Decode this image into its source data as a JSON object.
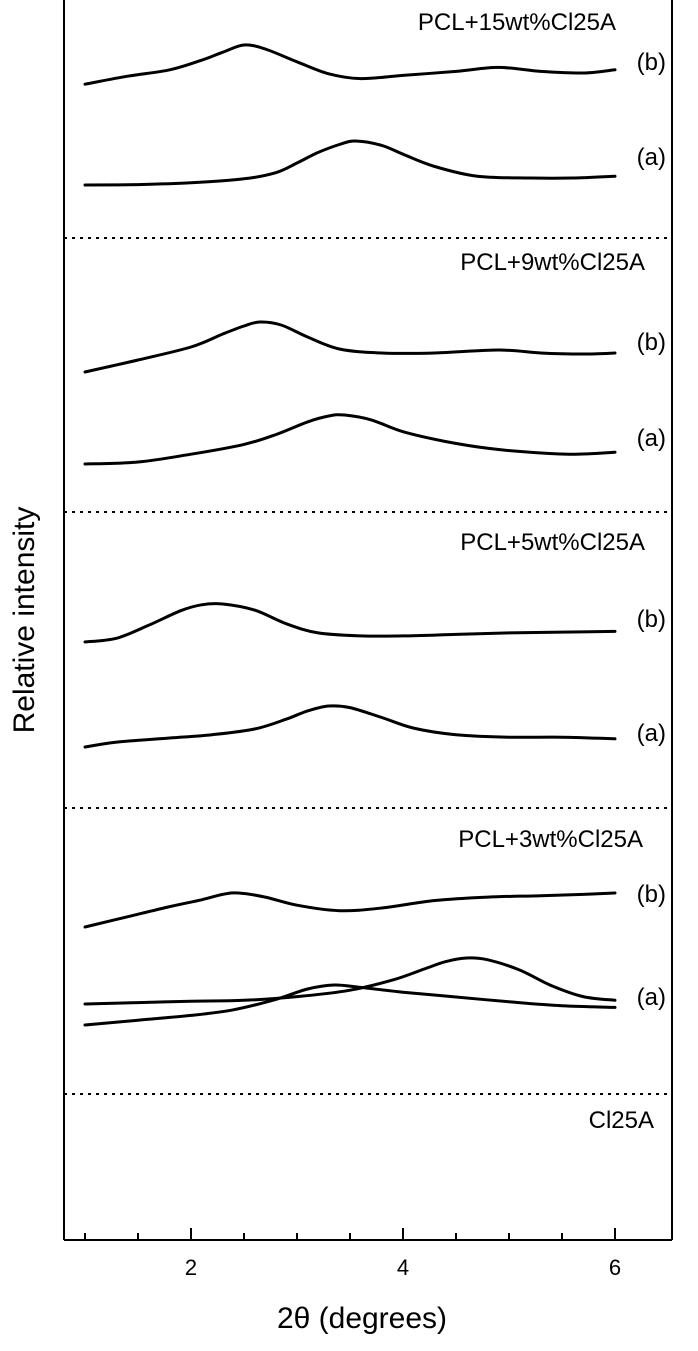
{
  "chart_data": {
    "type": "line",
    "xlabel": "2θ (degrees)",
    "ylabel": "Relative intensity",
    "xlim": [
      0.8,
      6.5
    ],
    "xticks": [
      2,
      4,
      6
    ],
    "xtick_labels": [
      "2",
      "4",
      "6"
    ],
    "grid": false,
    "legend": "none",
    "colors": {
      "line": "#000000",
      "axis": "#000000",
      "separator": "#000000"
    },
    "panels": [
      {
        "label": "PCL+15wt%Cl25A",
        "series": [
          {
            "name": "(b)",
            "points": [
              [
                1.0,
                0.02
              ],
              [
                1.4,
                0.22
              ],
              [
                1.8,
                0.38
              ],
              [
                2.1,
                0.62
              ],
              [
                2.3,
                0.82
              ],
              [
                2.5,
                1.0
              ],
              [
                2.7,
                0.9
              ],
              [
                3.0,
                0.58
              ],
              [
                3.3,
                0.28
              ],
              [
                3.6,
                0.16
              ],
              [
                4.0,
                0.24
              ],
              [
                4.5,
                0.34
              ],
              [
                4.9,
                0.44
              ],
              [
                5.3,
                0.34
              ],
              [
                5.7,
                0.3
              ],
              [
                6.0,
                0.38
              ]
            ]
          },
          {
            "name": "(a)",
            "points": [
              [
                1.0,
                0.0
              ],
              [
                1.5,
                0.01
              ],
              [
                2.0,
                0.05
              ],
              [
                2.5,
                0.14
              ],
              [
                2.8,
                0.28
              ],
              [
                3.0,
                0.5
              ],
              [
                3.2,
                0.74
              ],
              [
                3.4,
                0.92
              ],
              [
                3.55,
                1.0
              ],
              [
                3.8,
                0.9
              ],
              [
                4.0,
                0.7
              ],
              [
                4.3,
                0.42
              ],
              [
                4.7,
                0.2
              ],
              [
                5.2,
                0.16
              ],
              [
                5.6,
                0.16
              ],
              [
                6.0,
                0.2
              ]
            ]
          }
        ]
      },
      {
        "label": "PCL+9wt%Cl25A",
        "series": [
          {
            "name": "(b)",
            "points": [
              [
                1.0,
                0.0
              ],
              [
                1.5,
                0.24
              ],
              [
                2.0,
                0.5
              ],
              [
                2.3,
                0.76
              ],
              [
                2.5,
                0.92
              ],
              [
                2.65,
                1.0
              ],
              [
                2.85,
                0.94
              ],
              [
                3.1,
                0.7
              ],
              [
                3.4,
                0.46
              ],
              [
                3.8,
                0.38
              ],
              [
                4.3,
                0.38
              ],
              [
                4.9,
                0.44
              ],
              [
                5.3,
                0.38
              ],
              [
                5.7,
                0.36
              ],
              [
                6.0,
                0.38
              ]
            ]
          },
          {
            "name": "(a)",
            "points": [
              [
                1.0,
                0.0
              ],
              [
                1.5,
                0.04
              ],
              [
                2.0,
                0.2
              ],
              [
                2.5,
                0.4
              ],
              [
                2.8,
                0.6
              ],
              [
                3.1,
                0.86
              ],
              [
                3.3,
                0.98
              ],
              [
                3.45,
                1.0
              ],
              [
                3.7,
                0.9
              ],
              [
                4.0,
                0.66
              ],
              [
                4.4,
                0.46
              ],
              [
                4.8,
                0.32
              ],
              [
                5.2,
                0.24
              ],
              [
                5.6,
                0.2
              ],
              [
                6.0,
                0.24
              ]
            ]
          }
        ]
      },
      {
        "label": "PCL+5wt%Cl25A",
        "series": [
          {
            "name": "(b)",
            "points": [
              [
                1.0,
                0.0
              ],
              [
                1.3,
                0.1
              ],
              [
                1.6,
                0.44
              ],
              [
                1.9,
                0.82
              ],
              [
                2.1,
                0.98
              ],
              [
                2.3,
                1.0
              ],
              [
                2.6,
                0.84
              ],
              [
                2.9,
                0.48
              ],
              [
                3.2,
                0.24
              ],
              [
                3.6,
                0.16
              ],
              [
                4.0,
                0.16
              ],
              [
                4.5,
                0.2
              ],
              [
                5.0,
                0.24
              ],
              [
                5.5,
                0.26
              ],
              [
                6.0,
                0.28
              ]
            ]
          },
          {
            "name": "(a)",
            "points": [
              [
                1.0,
                0.0
              ],
              [
                1.3,
                0.12
              ],
              [
                1.8,
                0.22
              ],
              [
                2.2,
                0.3
              ],
              [
                2.6,
                0.44
              ],
              [
                2.9,
                0.68
              ],
              [
                3.1,
                0.88
              ],
              [
                3.3,
                1.0
              ],
              [
                3.5,
                0.96
              ],
              [
                3.8,
                0.72
              ],
              [
                4.1,
                0.46
              ],
              [
                4.5,
                0.3
              ],
              [
                5.0,
                0.24
              ],
              [
                5.5,
                0.24
              ],
              [
                6.0,
                0.2
              ]
            ]
          }
        ]
      },
      {
        "label": "PCL+3wt%Cl25A",
        "series": [
          {
            "name": "(b)",
            "points": [
              [
                1.0,
                0.0
              ],
              [
                1.4,
                0.3
              ],
              [
                1.8,
                0.6
              ],
              [
                2.1,
                0.8
              ],
              [
                2.3,
                0.96
              ],
              [
                2.45,
                1.0
              ],
              [
                2.7,
                0.88
              ],
              [
                3.0,
                0.64
              ],
              [
                3.4,
                0.48
              ],
              [
                3.8,
                0.56
              ],
              [
                4.3,
                0.78
              ],
              [
                4.8,
                0.88
              ],
              [
                5.3,
                0.92
              ],
              [
                5.7,
                0.96
              ],
              [
                6.0,
                1.0
              ]
            ]
          },
          {
            "name": "(a)",
            "points": [
              [
                1.0,
                0.0
              ],
              [
                1.5,
                0.12
              ],
              [
                2.0,
                0.24
              ],
              [
                2.4,
                0.38
              ],
              [
                2.8,
                0.64
              ],
              [
                3.1,
                0.9
              ],
              [
                3.35,
                1.0
              ],
              [
                3.6,
                0.94
              ],
              [
                4.0,
                0.82
              ],
              [
                4.5,
                0.7
              ],
              [
                5.0,
                0.58
              ],
              [
                5.5,
                0.48
              ],
              [
                6.0,
                0.44
              ]
            ]
          }
        ]
      },
      {
        "label": "Cl25A",
        "series": [
          {
            "name": "",
            "points": [
              [
                1.0,
                0.0
              ],
              [
                1.5,
                0.03
              ],
              [
                2.0,
                0.06
              ],
              [
                2.5,
                0.08
              ],
              [
                3.0,
                0.16
              ],
              [
                3.5,
                0.3
              ],
              [
                3.9,
                0.52
              ],
              [
                4.2,
                0.76
              ],
              [
                4.4,
                0.92
              ],
              [
                4.6,
                1.0
              ],
              [
                4.8,
                0.96
              ],
              [
                5.1,
                0.74
              ],
              [
                5.4,
                0.4
              ],
              [
                5.7,
                0.16
              ],
              [
                6.0,
                0.08
              ]
            ]
          }
        ]
      }
    ]
  }
}
